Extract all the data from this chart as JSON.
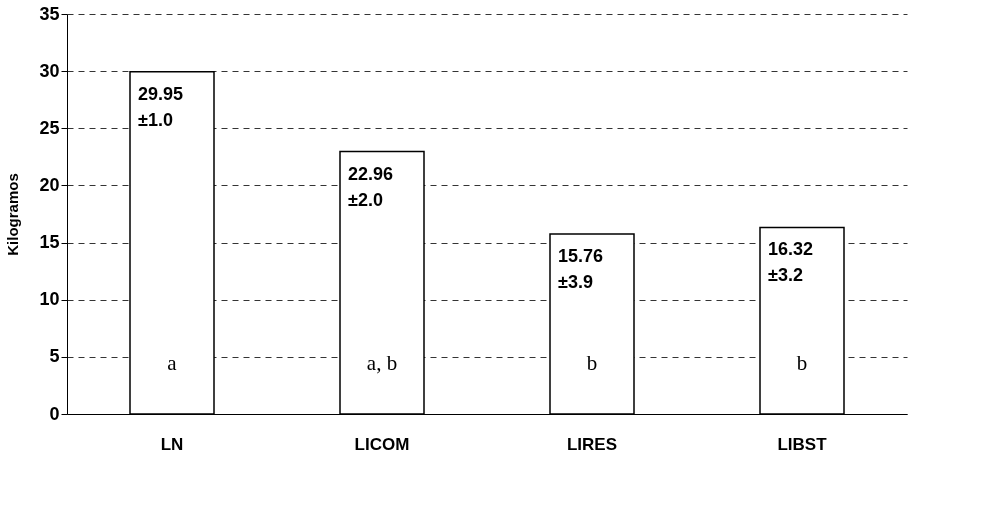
{
  "chart_data": {
    "type": "bar",
    "ylabel": "Kilogramos",
    "categories": [
      "LN",
      "LICOM",
      "LIRES",
      "LIBST"
    ],
    "values": [
      29.95,
      22.96,
      15.76,
      16.32
    ],
    "value_labels": [
      "29.95 ±1.0",
      "22.96 ±2.0",
      "15.76 ±3.9",
      "16.32 ±3.2"
    ],
    "color": "#ffffff",
    "ylim": [
      0,
      35
    ],
    "yticks": [
      0,
      5,
      10,
      15,
      20,
      25,
      30,
      35
    ],
    "grid": "y",
    "annotations": [
      "a",
      "a, b",
      "b",
      "b"
    ]
  }
}
